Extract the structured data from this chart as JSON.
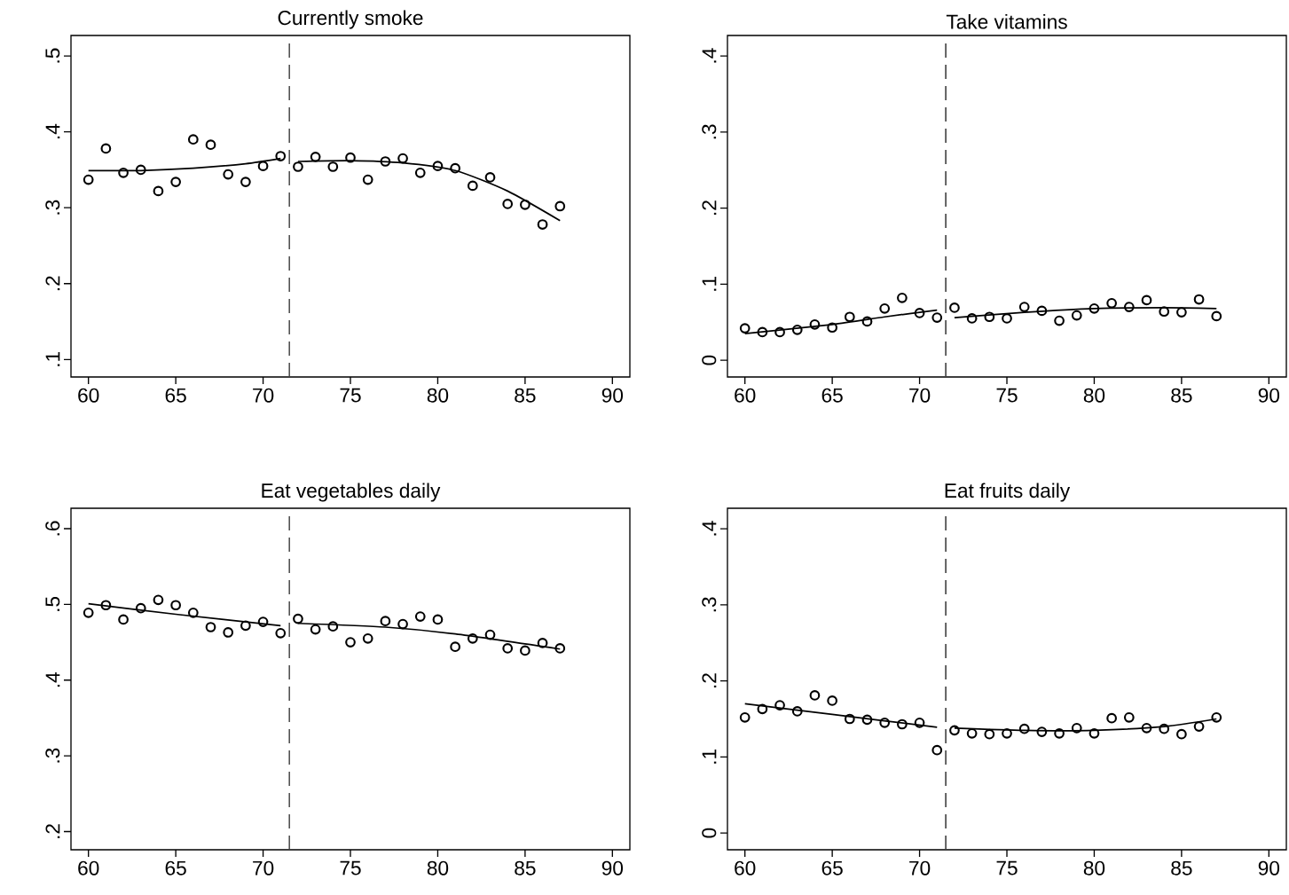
{
  "chart_data": [
    {
      "type": "scatter",
      "title": "Currently smoke",
      "marker": "circle",
      "grid": false,
      "x": [
        60,
        61,
        62,
        63,
        64,
        65,
        66,
        67,
        68,
        69,
        70,
        71,
        72,
        73,
        74,
        75,
        76,
        77,
        78,
        79,
        80,
        81,
        82,
        83,
        84,
        85,
        86,
        87
      ],
      "xlim": [
        59,
        91
      ],
      "xticks": [
        60,
        65,
        70,
        75,
        80,
        85,
        90
      ],
      "ylim": [
        0.077,
        0.527
      ],
      "yticks": [
        {
          "value": 0.1,
          "label": ".1"
        },
        {
          "value": 0.2,
          "label": ".2"
        },
        {
          "value": 0.3,
          "label": ".3"
        },
        {
          "value": 0.4,
          "label": ".4"
        },
        {
          "value": 0.5,
          "label": ".5"
        }
      ],
      "ref_lines": [
        {
          "axis": "x",
          "value": 71.5,
          "color": "#404040",
          "line_style": "dashed"
        }
      ],
      "series": [
        {
          "color": "#000000",
          "values": [
            0.337,
            0.378,
            0.346,
            0.35,
            0.322,
            0.334,
            0.39,
            0.383,
            0.344,
            0.334,
            0.355,
            0.368,
            0.354,
            0.367,
            0.354,
            0.366,
            0.337,
            0.361,
            0.365,
            0.346,
            0.355,
            0.352,
            0.329,
            0.34,
            0.305,
            0.304,
            0.278,
            0.302
          ]
        },
        {
          "type": "line",
          "marker": "none",
          "color": "#000000",
          "x": [
            60,
            63,
            66,
            69,
            71
          ],
          "values": [
            0.349,
            0.349,
            0.352,
            0.358,
            0.365
          ]
        },
        {
          "type": "line",
          "marker": "none",
          "color": "#000000",
          "x": [
            72,
            75,
            78,
            81,
            84,
            87
          ],
          "values": [
            0.361,
            0.362,
            0.359,
            0.349,
            0.322,
            0.283
          ]
        }
      ]
    },
    {
      "type": "scatter",
      "title": "Take vitamins",
      "marker": "circle",
      "grid": false,
      "x": [
        60,
        61,
        62,
        63,
        64,
        65,
        66,
        67,
        68,
        69,
        70,
        71,
        72,
        73,
        74,
        75,
        76,
        77,
        78,
        79,
        80,
        81,
        82,
        83,
        84,
        85,
        86,
        87
      ],
      "xlim": [
        59,
        91
      ],
      "xticks": [
        60,
        65,
        70,
        75,
        80,
        85,
        90
      ],
      "ylim": [
        -0.022,
        0.427
      ],
      "yticks": [
        0,
        {
          "value": 0.1,
          "label": ".1"
        },
        {
          "value": 0.2,
          "label": ".2"
        },
        {
          "value": 0.3,
          "label": ".3"
        },
        {
          "value": 0.4,
          "label": ".4"
        }
      ],
      "ref_lines": [
        {
          "axis": "x",
          "value": 71.5,
          "color": "#404040",
          "line_style": "dashed"
        }
      ],
      "series": [
        {
          "color": "#000000",
          "values": [
            0.042,
            0.037,
            0.037,
            0.04,
            0.047,
            0.043,
            0.057,
            0.051,
            0.068,
            0.082,
            0.062,
            0.056,
            0.069,
            0.055,
            0.057,
            0.055,
            0.07,
            0.065,
            0.052,
            0.059,
            0.068,
            0.075,
            0.07,
            0.079,
            0.064,
            0.063,
            0.08,
            0.058
          ]
        },
        {
          "type": "line",
          "marker": "none",
          "color": "#000000",
          "x": [
            60,
            65,
            68,
            71
          ],
          "values": [
            0.035,
            0.047,
            0.057,
            0.066
          ]
        },
        {
          "type": "line",
          "marker": "none",
          "color": "#000000",
          "x": [
            72,
            76,
            80,
            84,
            87
          ],
          "values": [
            0.056,
            0.063,
            0.068,
            0.069,
            0.068
          ]
        }
      ]
    },
    {
      "type": "scatter",
      "title": "Eat vegetables daily",
      "marker": "circle",
      "grid": false,
      "x": [
        60,
        61,
        62,
        63,
        64,
        65,
        66,
        67,
        68,
        69,
        70,
        71,
        72,
        73,
        74,
        75,
        76,
        77,
        78,
        79,
        80,
        81,
        82,
        83,
        84,
        85,
        86,
        87
      ],
      "xlim": [
        59,
        91
      ],
      "xticks": [
        60,
        65,
        70,
        75,
        80,
        85,
        90
      ],
      "ylim": [
        0.176,
        0.627
      ],
      "yticks": [
        {
          "value": 0.2,
          "label": ".2"
        },
        {
          "value": 0.3,
          "label": ".3"
        },
        {
          "value": 0.4,
          "label": ".4"
        },
        {
          "value": 0.5,
          "label": ".5"
        },
        {
          "value": 0.6,
          "label": ".6"
        }
      ],
      "ref_lines": [
        {
          "axis": "x",
          "value": 71.5,
          "color": "#404040",
          "line_style": "dashed"
        }
      ],
      "series": [
        {
          "color": "#000000",
          "values": [
            0.489,
            0.499,
            0.48,
            0.495,
            0.506,
            0.499,
            0.489,
            0.47,
            0.463,
            0.472,
            0.477,
            0.462,
            0.481,
            0.467,
            0.471,
            0.45,
            0.455,
            0.478,
            0.474,
            0.484,
            0.48,
            0.444,
            0.455,
            0.46,
            0.442,
            0.439,
            0.449,
            0.442
          ]
        },
        {
          "type": "line",
          "marker": "none",
          "color": "#000000",
          "x": [
            60,
            65,
            71
          ],
          "values": [
            0.501,
            0.487,
            0.472
          ]
        },
        {
          "type": "line",
          "marker": "none",
          "color": "#000000",
          "x": [
            72,
            77,
            81,
            87
          ],
          "values": [
            0.475,
            0.47,
            0.461,
            0.441
          ]
        }
      ]
    },
    {
      "type": "scatter",
      "title": "Eat fruits daily",
      "marker": "circle",
      "grid": false,
      "x": [
        60,
        61,
        62,
        63,
        64,
        65,
        66,
        67,
        68,
        69,
        70,
        71,
        72,
        73,
        74,
        75,
        76,
        77,
        78,
        79,
        80,
        81,
        82,
        83,
        84,
        85,
        86,
        87
      ],
      "xlim": [
        59,
        91
      ],
      "xticks": [
        60,
        65,
        70,
        75,
        80,
        85,
        90
      ],
      "ylim": [
        -0.022,
        0.427
      ],
      "yticks": [
        0,
        {
          "value": 0.1,
          "label": ".1"
        },
        {
          "value": 0.2,
          "label": ".2"
        },
        {
          "value": 0.3,
          "label": ".3"
        },
        {
          "value": 0.4,
          "label": ".4"
        }
      ],
      "ref_lines": [
        {
          "axis": "x",
          "value": 71.5,
          "color": "#404040",
          "line_style": "dashed"
        }
      ],
      "series": [
        {
          "color": "#000000",
          "values": [
            0.152,
            0.163,
            0.168,
            0.16,
            0.181,
            0.174,
            0.15,
            0.149,
            0.145,
            0.143,
            0.145,
            0.109,
            0.135,
            0.131,
            0.13,
            0.131,
            0.137,
            0.133,
            0.131,
            0.138,
            0.131,
            0.151,
            0.152,
            0.138,
            0.137,
            0.13,
            0.14,
            0.152
          ]
        },
        {
          "type": "line",
          "marker": "none",
          "color": "#000000",
          "x": [
            60,
            65,
            71
          ],
          "values": [
            0.17,
            0.156,
            0.139
          ]
        },
        {
          "type": "line",
          "marker": "none",
          "color": "#000000",
          "x": [
            72,
            76,
            80,
            84,
            87
          ],
          "values": [
            0.138,
            0.135,
            0.135,
            0.14,
            0.15
          ]
        }
      ]
    }
  ]
}
